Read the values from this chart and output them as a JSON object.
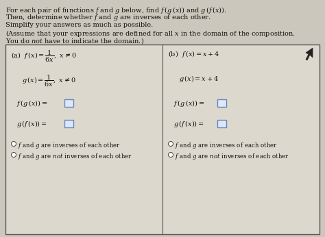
{
  "bg_color": "#ccc7bc",
  "table_bg": "#ddd8ce",
  "text_color": "#111111",
  "box_border": "#6688bb",
  "box_fill": "#dde8fa",
  "figsize": [
    4.74,
    3.46
  ],
  "dpi": 100,
  "header": [
    "For each pair of functions $f$ and $g$ below, find $f\\,(g\\,(x))$ and $g\\,(f\\,(x))$.",
    "Then, determine whether $f$ and $g$ are inverses of each other.",
    "Simplify your answers as much as possible.",
    "(Assume that your expressions are defined for all $x$ in the domain of the composition.",
    "You do $\\it{not}$ have to indicate the domain.)"
  ],
  "col_a": {
    "label": "(a)",
    "fx": "$f\\,(x) = \\dfrac{1}{6x},\\ x \\neq 0$",
    "gx": "$g\\,(x) = \\dfrac{1}{6x},\\ x \\neq 0$",
    "fgx": "$f\\,(g\\,(x)) = $",
    "gfx": "$g\\,(f\\,(x)) = $",
    "inv1": "$f$ and $g$ are inverses of each other",
    "inv2": "$f$ and $g$ are $\\it{not}$ inverses of each other"
  },
  "col_b": {
    "label": "(b)",
    "fx": "$f\\,(x) = x + 4$",
    "gx": "$g\\,(x) = x + 4$",
    "fgx": "$f\\,(g\\,(x)) = $",
    "gfx": "$g\\,(f\\,(x)) = $",
    "inv1": "$f$ and $g$ are inverses of each other",
    "inv2": "$f$ and $g$ are $\\it{not}$ inverses of each other"
  }
}
